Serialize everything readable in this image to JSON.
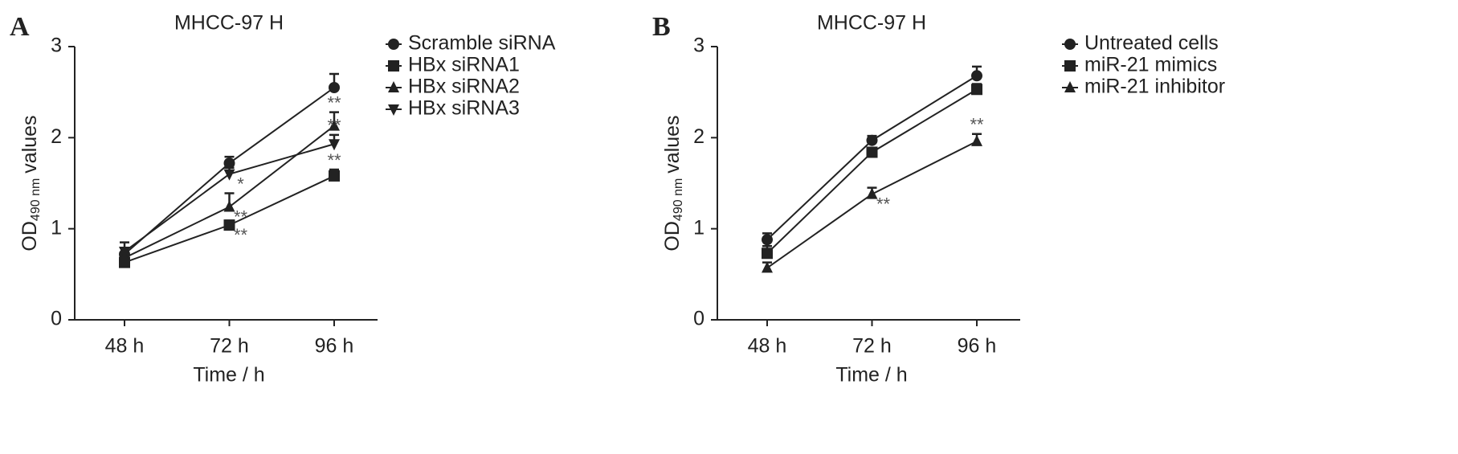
{
  "chart_data": [
    {
      "type": "line",
      "panel": "A",
      "title": "MHCC-97 H",
      "xlabel": "Time / h",
      "ylabel": [
        "OD",
        "490 nm",
        "values"
      ],
      "categories": [
        "48 h",
        "72 h",
        "96 h"
      ],
      "ylim": [
        0,
        3
      ],
      "yticks": [
        0,
        1,
        2,
        3
      ],
      "series": [
        {
          "name": "Scramble siRNA",
          "color": "#222222",
          "marker": "circle",
          "values": [
            0.72,
            1.72,
            2.55
          ],
          "errors": [
            0.07,
            0.07,
            0.15
          ],
          "annotations": [
            null,
            null,
            null
          ]
        },
        {
          "name": "HBx siRNA1",
          "color": "#222222",
          "marker": "square",
          "values": [
            0.63,
            1.04,
            1.58
          ],
          "errors": [
            0.03,
            0.05,
            0.07
          ],
          "annotations": [
            null,
            "**",
            "**"
          ]
        },
        {
          "name": "HBx siRNA2",
          "color": "#222222",
          "marker": "triangle-up",
          "values": [
            0.68,
            1.24,
            2.13
          ],
          "errors": [
            0.05,
            0.15,
            0.15
          ],
          "annotations": [
            null,
            "**",
            "**"
          ]
        },
        {
          "name": "HBx siRNA3",
          "color": "#222222",
          "marker": "triangle-down",
          "values": [
            0.75,
            1.6,
            1.93
          ],
          "errors": [
            0.1,
            0.07,
            0.1
          ],
          "annotations": [
            null,
            "*",
            "**"
          ]
        }
      ]
    },
    {
      "type": "line",
      "panel": "B",
      "title": "MHCC-97 H",
      "xlabel": "Time / h",
      "ylabel": [
        "OD",
        "490 nm",
        "values"
      ],
      "categories": [
        "48 h",
        "72 h",
        "96 h"
      ],
      "ylim": [
        0,
        3
      ],
      "yticks": [
        0,
        1,
        2,
        3
      ],
      "series": [
        {
          "name": "Untreated cells",
          "color": "#222222",
          "marker": "circle",
          "values": [
            0.88,
            1.97,
            2.68
          ],
          "errors": [
            0.07,
            0.05,
            0.1
          ],
          "annotations": [
            null,
            null,
            null
          ]
        },
        {
          "name": "miR-21 mimics",
          "color": "#222222",
          "marker": "square",
          "values": [
            0.73,
            1.84,
            2.53
          ],
          "errors": [
            0.08,
            0.05,
            0.06
          ],
          "annotations": [
            null,
            null,
            null
          ]
        },
        {
          "name": "miR-21 inhibitor",
          "color": "#222222",
          "marker": "triangle-up",
          "values": [
            0.57,
            1.38,
            1.96
          ],
          "errors": [
            0.06,
            0.07,
            0.08
          ],
          "annotations": [
            null,
            "**",
            "**"
          ]
        }
      ]
    }
  ]
}
